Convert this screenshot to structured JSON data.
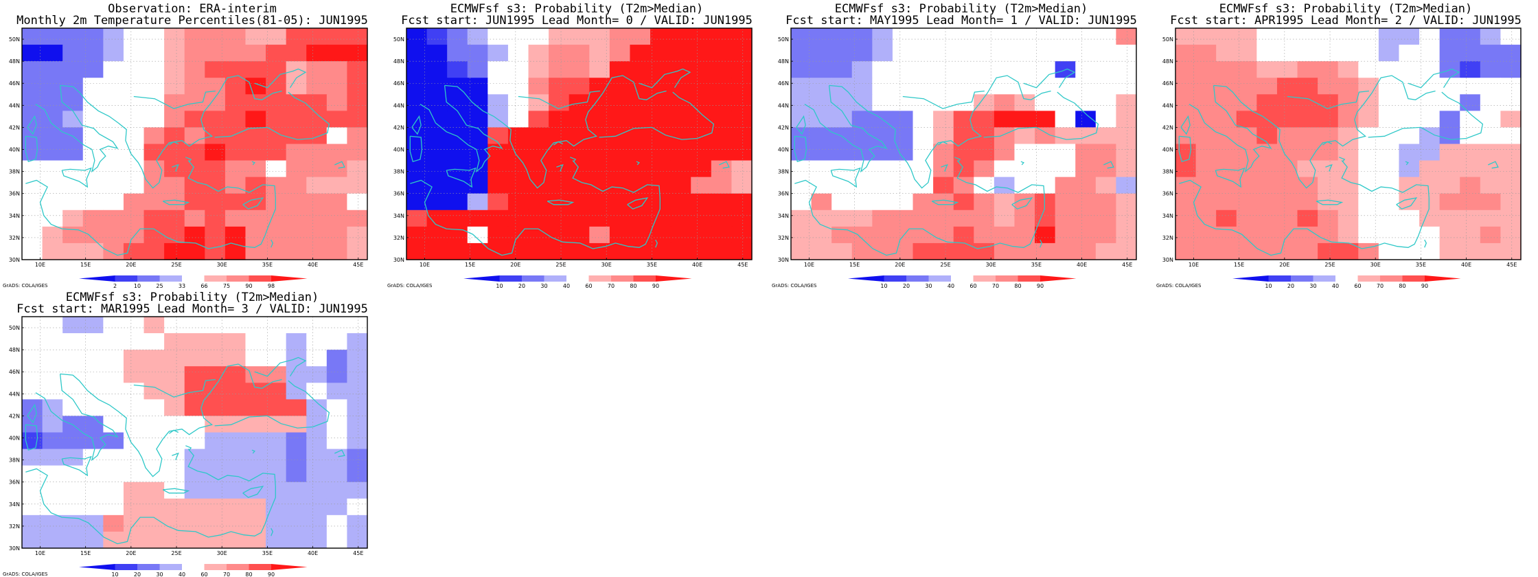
{
  "map": {
    "lon_range": [
      8,
      46
    ],
    "lat_range": [
      30,
      51
    ],
    "lat_ticks": [
      "30N",
      "32N",
      "34N",
      "36N",
      "38N",
      "40N",
      "42N",
      "44N",
      "46N",
      "48N",
      "50N"
    ],
    "lon_ticks": [
      "10E",
      "15E",
      "20E",
      "25E",
      "30E",
      "35E",
      "40E",
      "45E"
    ],
    "colors": {
      "-4": "#1010ee",
      "-3": "#4040f4",
      "-2": "#7878f6",
      "-1": "#b0b0fa",
      "0": "#ffffff",
      "1": "#ffb0b0",
      "2": "#ff8a8a",
      "3": "#ff5050",
      "4": "#ff1818",
      "coast": "#2ec8c8",
      "frame": "#000000"
    },
    "credit": "GrADS: COLA/IGES"
  },
  "panels": [
    {
      "title1": "Observation: ERA-interim",
      "title2": "Monthly 2m Temperature Percentiles(81-05): JUN1995",
      "colorbar": [
        "2",
        "10",
        "25",
        "33",
        "66",
        "75",
        "90",
        "98"
      ],
      "grid": [
        "-2-2-2-2-1 0 0 1 2 2 2 1 1 3 3 3 3",
        "-4-4-2-2-1 0 0 1 2 2 2 2 3 3 4 4 4",
        "-2-2-2-2 0 0 0 1 2 3 3 3 3 1 2 2 3",
        "-2-2-2 0 0 0 0 1 2 2 3 4 3 1 2 2 3",
        "-2-2-2 0 0 0 0 2 2 2 3 3 3 3 3 2 3",
        "-2-2-1 0 0 0 0 2 3 3 3 4 3 3 3 3 3",
        "-2-2-2 0 0 0 2 3 2 3 3 3 3 3 3 0 2",
        "-2-2-2 0 0 0 3 3 3 4 3 3 3 2 2 2 2",
        " 0 0 0 0 0 0 2 3 3 3 2 2 0 2 2 2 1",
        " 0 0 0 0 0 0 2 2 3 3 2 3 2 2 1 1 1",
        " 0 0 0 0 0 2 2 2 3 3 3 3 2 2 2 2 0",
        " 0 0 1 2 2 2 3 3 2 3 2 2 2 2 2 2 2",
        " 0 1 2 2 2 2 3 3 4 3 4 2 2 2 2 2 1",
        " 0 1 1 1 2 3 3 4 4 3 4 2 2 2 2 2 1"
      ]
    },
    {
      "title1": "ECMWFsf s3: Probability (T2m>Median)",
      "title2": "Fcst start: JUN1995  Lead Month= 0 / VALID: JUN1995",
      "colorbar": [
        "10",
        "20",
        "30",
        "40",
        "60",
        "70",
        "80",
        "90"
      ],
      "grid": [
        "-4-3-2-1 0 0 0 1 1 1 2 2 4 4 4 4 4",
        "-4-4-2-2-1 0 1 2 2 1 2 4 4 4 4 4 4",
        "-4-4-3-2 0 0 1 2 2 1 4 4 4 4 4 4 4",
        "-4-4-4-4 0 0 2 3 3 4 4 4 4 4 4 4 4",
        "-4-4-4-4-1 0 1 3 4 4 4 4 4 4 4 4 4",
        "-4-4-4-4-1 0 3 4 4 4 4 4 4 4 4 4 4",
        "-4-4-4-4 3 4 4 4 4 4 4 4 4 4 4 4 4",
        "-4-4-4-4 4 4 4 4 4 4 4 4 4 4 4 4 4",
        "-4-4-4-4 4 4 4 4 4 4 4 4 4 4 4 2 1",
        "-4-4-4-4 4 4 4 4 4 4 4 4 4 4 2 2 1",
        "-4-4-4-1 3 4 4 4 4 4 4 4 4 4 4 4 4",
        " 3 4 4 4 4 4 4 4 4 4 4 4 4 4 4 4 4",
        " 4 4 4 0 4 4 4 4 4 2 4 4 4 4 4 4 4",
        " 4 4 4 4 4 4 4 4 4 4 4 4 4 4 4 4 4"
      ]
    },
    {
      "title1": "ECMWFsf s3: Probability (T2m>Median)",
      "title2": "Fcst start: MAY1995  Lead Month= 1 / VALID: JUN1995",
      "colorbar": [
        "10",
        "20",
        "30",
        "40",
        "60",
        "70",
        "80",
        "90"
      ],
      "grid": [
        "-2-2-2-2-1 0 0 0 0 0 0 0 0 0 0 0 2",
        "-2-2-2-2-1 0 0 0 0 0 0 0 0 0 0 0 0",
        "-2-2-2-1 0 0 0 0 0 0 0 0 0-3 0 0 0",
        "-1-1-1-1 0 0 0 0 0 0 0 0 0 0 0 0 0",
        "-1-1-1-1 0 0 0 0 0 1 2 1 0 0 0 0 1",
        "-1-1-1-2-2-2 0 1 3 3 4 4 4 0-4 0 1",
        "-2-2-2-2-2-2 0 1 3 3 2 1 2 1 1 1 1",
        "-2-2-2-2-2-2 0 2 3 3 2 0 0 0 2 2 1",
        " 0 0 0 0 0 0 0 2 3 2 0 0 0 0 2 2 1",
        " 0 0 0 0 0 0 0 3 2 0-1 0 0 2 2 1-1",
        " 0 2 0 0 0 0 2 2 3 2 1 2 3 2 2 2 1",
        " 1 1 1 1 2 2 2 2 2 2 1 2 3 2 2 2 1",
        " 1 1 2 2 2 2 2 2 3 2 2 2 4 2 2 2 1",
        " 1 1 1 2 2 2 3 3 3 3 2 2 2 2 2 1 1"
      ]
    },
    {
      "title1": "ECMWFsf s3: Probability (T2m>Median)",
      "title2": "Fcst start: APR1995  Lead Month= 2 / VALID: JUN1995",
      "colorbar": [
        "10",
        "20",
        "30",
        "40",
        "60",
        "70",
        "80",
        "90"
      ],
      "grid": [
        " 1 1 1 1 0 0 0 0 0 0-1-1 0-2-2-1 0",
        " 2 2 1 1 0 0 0 0 0 0-1 0 0-2-2-2-2",
        " 2 2 2 2 1 1 2 2 1 0 0 0 0-2-3-2-2",
        " 2 2 2 2 2 3 3 2 2 1 0 0 0 0 0 0 0",
        " 2 2 2 2 3 3 3 3 2 1 0 0 0 0-2 0 0",
        " 2 2 2 3 3 3 3 3 2 1 0 0 0-2 0 0 1",
        " 2 2 2 2 3 2 2 2 1 0 0 0-1-2 0 0 0",
        " 3 2 2 2 2 2 2 2 1 0 0-1-1 1 1 1 1",
        " 3 2 2 2 2 2 1 1 1 0 0-1 1 1 1 1 1",
        " 2 2 2 2 2 2 2 1 1 0 0 1 1 1 2 1 1",
        " 2 2 2 2 2 2 2 1 1 0 0 1 1 2 2 2 1",
        " 2 2 3 2 2 2 3 2 1 0 0 0 1 1 1 1 1",
        " 2 2 2 2 2 2 2 2 1 0 0 0 0 1 1 2 1",
        " 2 2 2 2 2 2 2 3 3 2 0 0 0 1 1 1 1"
      ]
    },
    {
      "title1": "ECMWFsf s3: Probability (T2m>Median)",
      "title2": "Fcst start: MAR1995  Lead Month= 3 / VALID: JUN1995",
      "colorbar": [
        "10",
        "20",
        "30",
        "40",
        "60",
        "70",
        "80",
        "90"
      ],
      "grid": [
        " 0 0-1-1 0 0 1 0 0 0 0 0 0 0 0 0 0",
        " 0 0 0 0 0 0 0 1 1 1 1 0 0-1 0 0-1",
        " 0 0 0 0 0 1 1 1 1 1 1 0 0-1 0-2-1",
        " 0 0 0 0 0 1 1 1 3 3 3 2 2-1-1-2-1",
        " 0 0 0 0 0 0 1 1 3 3 3 3 3-1 0-1-1",
        "-2-1 0 0 0 0 0 1 3 3 3 3 3 3-1 0-1",
        "-2-1-2-2 0 0 0 0 0 1 1 1 1 1-1 0-1",
        "-3-2-2-2-2 0 0 0 0-1-1-1-1-2-1 0-1",
        "-1-1-1 0 0 0 0 0-1-1-1-1-1-2-1-1-2",
        " 0 0 0 0 0 0 0 0-1-1-1-1-1-2-1-1-2",
        " 0 0 0 0 0 1 1 0-1-1-1-1-1-1-1-1-1",
        " 0 0 0 0 0 1 1 1 1 1 1 1-1-1-1-1 0",
        "-1-1-1-1 2 1 1 1 1 1 1 1-1-1-1 0-1",
        "-1-1-1-1 1 1 1 1 1 1 1 1-1-1-1 0-1"
      ]
    }
  ]
}
